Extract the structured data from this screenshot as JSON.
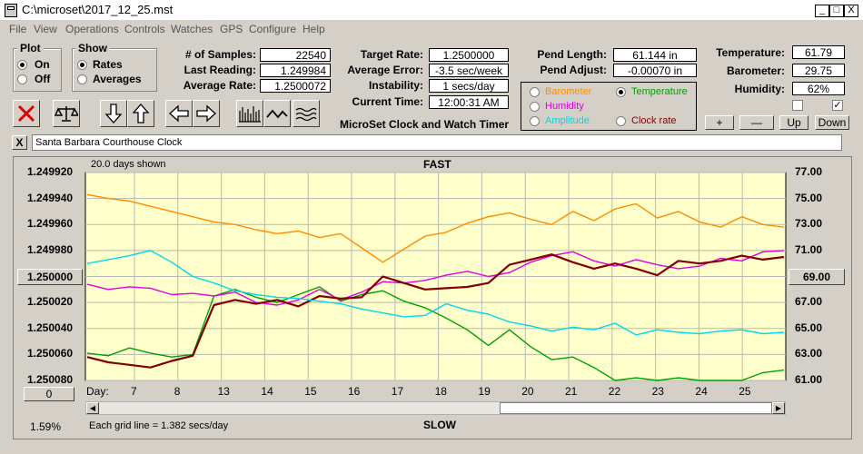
{
  "window": {
    "title": "C:\\microset\\2017_12_25.mst",
    "controls": [
      "_",
      "□",
      "X"
    ]
  },
  "menu": [
    "File",
    "View",
    "Operations",
    "Controls",
    "Watches",
    "GPS",
    "Configure",
    "Help"
  ],
  "plot_group": {
    "title": "Plot",
    "options": [
      "On",
      "Off"
    ],
    "selected": "On"
  },
  "show_group": {
    "title": "Show",
    "options": [
      "Rates",
      "Averages"
    ],
    "selected": "Rates"
  },
  "stats": [
    {
      "label": "# of Samples:",
      "value": "22540"
    },
    {
      "label": "Last Reading:",
      "value": "1.249984"
    },
    {
      "label": "Average Rate:",
      "value": "1.2500072"
    }
  ],
  "rates": [
    {
      "label": "Target Rate:",
      "value": "1.2500000"
    },
    {
      "label": "Average Error:",
      "value": "-3.5 sec/week"
    },
    {
      "label": "Instability:",
      "value": "1 secs/day"
    },
    {
      "label": "Current Time:",
      "value": "12:00:31 AM"
    }
  ],
  "app_caption": "MicroSet Clock and Watch Timer",
  "pend": [
    {
      "label": "Pend Length:",
      "value": "61.144 in"
    },
    {
      "label": "Pend Adjust:",
      "value": "-0.00070 in"
    }
  ],
  "env": [
    {
      "label": "Temperature:",
      "value": "61.79"
    },
    {
      "label": "Barometer:",
      "value": "29.75"
    },
    {
      "label": "Humidity:",
      "value": "62%"
    }
  ],
  "env_checks": [
    false,
    true
  ],
  "env_buttons": [
    "+",
    "—",
    "Up",
    "Down"
  ],
  "sensors": {
    "options": [
      {
        "label": "Barometer",
        "color": "#ff8c00",
        "selected": false
      },
      {
        "label": "Temperature",
        "color": "#00a000",
        "selected": true
      },
      {
        "label": "Humidity",
        "color": "#e000e0",
        "selected": false
      },
      {
        "label": "Clock rate",
        "color": "#800000",
        "selected": false
      },
      {
        "label": "Amplitude",
        "color": "#00d8e8",
        "selected": false
      }
    ]
  },
  "toolbar_icons": [
    "stop-icon",
    "balance-icon",
    "arrow-down-icon",
    "arrow-up-icon",
    "arrow-left-icon",
    "arrow-right-icon",
    "histogram-icon",
    "wave-icon",
    "noise-icon"
  ],
  "clock_name": "Santa Barbara Courthouse Clock",
  "close_label": "X",
  "chart_top_left": "20.0 days shown",
  "chart_top_center": "FAST",
  "chart_bottom_center": "SLOW",
  "chart_bottom_note": "Each grid line = 1.382 secs/day",
  "percent_label": "1.59%",
  "left_button": "1.250000",
  "right_button": "69.00",
  "zero_button": "0",
  "chart_data": {
    "type": "line",
    "x_axis_label": "Day:",
    "x_ticks": [
      "7",
      "8",
      "13",
      "14",
      "15",
      "16",
      "17",
      "18",
      "19",
      "20",
      "21",
      "22",
      "23",
      "24",
      "25"
    ],
    "y_left_ticks": [
      "1.249920",
      "1.249940",
      "1.249960",
      "1.249980",
      "1.250000",
      "1.250020",
      "1.250040",
      "1.250060",
      "1.250080"
    ],
    "y_right_ticks": [
      "77.00",
      "75.00",
      "73.00",
      "71.00",
      "69.00",
      "67.00",
      "65.00",
      "63.00",
      "61.00"
    ],
    "ylim_left": [
      1.24992,
      1.25008
    ],
    "ylim_right": [
      61,
      77
    ],
    "grid": true,
    "series": [
      {
        "name": "Barometer",
        "axis": "right",
        "color": "#ff8c00",
        "values": [
          75.3,
          75.0,
          74.8,
          74.4,
          74.0,
          73.6,
          73.2,
          73.0,
          72.6,
          72.3,
          72.5,
          72.0,
          72.3,
          71.2,
          70.1,
          71.1,
          72.1,
          72.4,
          73.1,
          73.6,
          73.9,
          73.4,
          73.0,
          74.0,
          73.3,
          74.2,
          74.6,
          73.5,
          74.0,
          73.2,
          72.8,
          73.6,
          73.0,
          72.8
        ]
      },
      {
        "name": "Temperature",
        "axis": "right",
        "color": "#00a000",
        "values": [
          63.1,
          62.9,
          63.5,
          63.1,
          62.8,
          63.0,
          67.5,
          68.0,
          67.4,
          67.0,
          67.6,
          68.2,
          67.1,
          67.6,
          67.9,
          67.1,
          66.6,
          65.8,
          64.9,
          63.7,
          64.9,
          63.6,
          62.6,
          62.8,
          62.0,
          61.0,
          61.2,
          61.0,
          61.2,
          61.0,
          61.0,
          61.0,
          61.6,
          61.8
        ]
      },
      {
        "name": "Humidity",
        "axis": "right",
        "color": "#e000e0",
        "values": [
          68.4,
          68.0,
          68.2,
          68.1,
          67.6,
          67.7,
          67.5,
          67.8,
          67.0,
          66.8,
          67.2,
          68.0,
          67.2,
          67.8,
          68.6,
          68.5,
          68.7,
          69.1,
          69.4,
          69.0,
          69.3,
          70.1,
          70.6,
          70.9,
          70.2,
          69.8,
          70.3,
          69.9,
          69.6,
          69.8,
          70.4,
          70.2,
          70.9,
          71.0
        ]
      },
      {
        "name": "Clock rate",
        "axis": "left",
        "color": "#800000",
        "values": [
          1.250062,
          1.250066,
          1.250068,
          1.25007,
          1.250065,
          1.250061,
          1.250022,
          1.250018,
          1.250021,
          1.250018,
          1.250023,
          1.250015,
          1.250017,
          1.250016,
          1.25,
          1.250005,
          1.25001,
          1.250009,
          1.250008,
          1.250005,
          1.249991,
          1.249987,
          1.249983,
          1.249989,
          1.249994,
          1.24999,
          1.249994,
          1.249999,
          1.249988,
          1.24999,
          1.249988,
          1.249984,
          1.249987,
          1.249985
        ]
      },
      {
        "name": "Amplitude",
        "axis": "right",
        "color": "#00d8e8",
        "values": [
          70.0,
          70.3,
          70.6,
          71.0,
          70.1,
          69.0,
          68.5,
          67.9,
          67.6,
          67.4,
          67.3,
          67.1,
          66.9,
          66.5,
          66.2,
          65.9,
          66.0,
          66.9,
          66.4,
          66.1,
          65.5,
          65.2,
          64.8,
          65.1,
          64.9,
          65.4,
          64.5,
          64.9,
          64.7,
          64.6,
          64.8,
          64.9,
          64.6,
          64.7
        ]
      }
    ]
  }
}
